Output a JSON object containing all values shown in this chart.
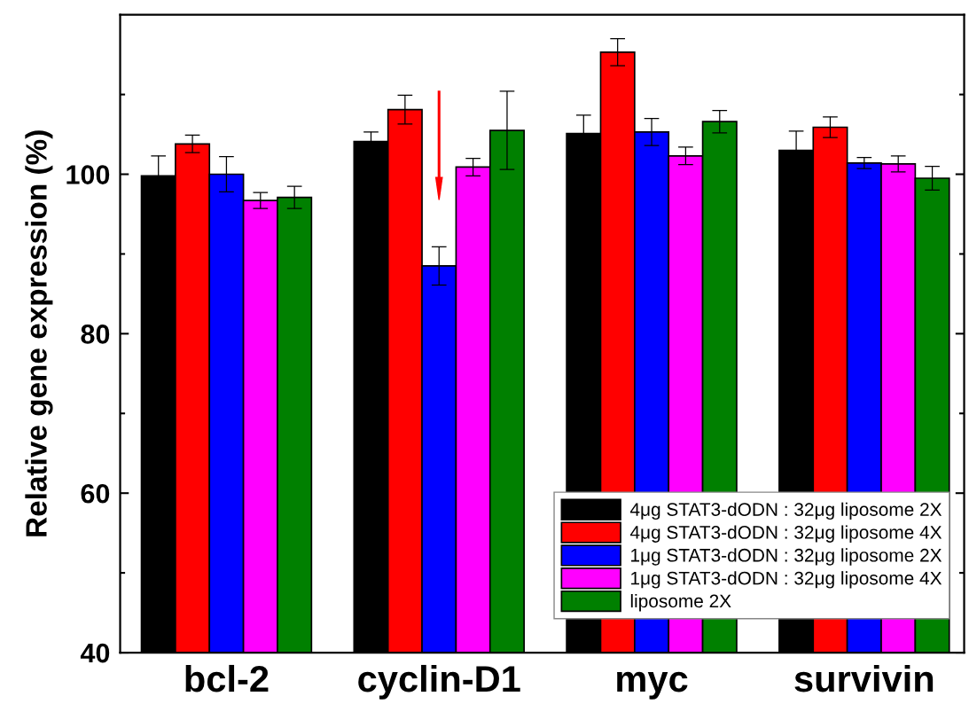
{
  "chart_data": {
    "type": "bar",
    "ylabel": "Relative gene expression (%)",
    "categories": [
      "bcl-2",
      "cyclin-D1",
      "myc",
      "survivin"
    ],
    "series": [
      {
        "name": "4μg STAT3-dODN : 32μg liposome 2X",
        "color": "#000000",
        "values": [
          99.8,
          104.1,
          105.1,
          103.0
        ],
        "errors": [
          2.5,
          1.2,
          2.3,
          2.4
        ]
      },
      {
        "name": "4μg STAT3-dODN : 32μg liposome 4X",
        "color": "#ff0000",
        "values": [
          103.8,
          108.1,
          115.3,
          105.9
        ],
        "errors": [
          1.1,
          1.8,
          1.7,
          1.3
        ]
      },
      {
        "name": "1μg STAT3-dODN : 32μg liposome 2X",
        "color": "#0000ff",
        "values": [
          100.0,
          88.5,
          105.3,
          101.4
        ],
        "errors": [
          2.2,
          2.4,
          1.7,
          0.7
        ]
      },
      {
        "name": "1μg STAT3-dODN : 32μg liposome 4X",
        "color": "#ff00ff",
        "values": [
          96.7,
          100.9,
          102.3,
          101.3
        ],
        "errors": [
          1.0,
          1.1,
          1.1,
          1.0
        ]
      },
      {
        "name": "liposome 2X",
        "color": "#008000",
        "values": [
          97.1,
          105.5,
          106.6,
          99.5
        ],
        "errors": [
          1.4,
          4.9,
          1.4,
          1.5
        ]
      }
    ],
    "ylim": [
      40,
      120
    ],
    "yticks": [
      40,
      {
        "value": 50,
        "label": null
      },
      60,
      {
        "value": 70,
        "label": null
      },
      80,
      {
        "value": 90,
        "label": null
      },
      100,
      {
        "value": 110,
        "label": null
      }
    ],
    "legend": "bottom right",
    "grid": false
  }
}
